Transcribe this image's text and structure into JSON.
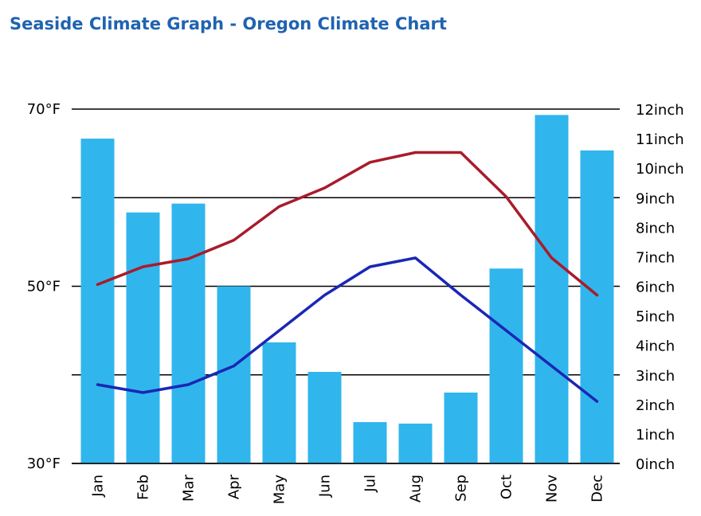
{
  "page": {
    "title": "Seaside Climate Graph - Oregon Climate Chart"
  },
  "colors": {
    "title": "#1f63b0",
    "precipitation_bar": "#30b6ec",
    "high_temp_line": "#a81c2b",
    "low_temp_line": "#1a27b5",
    "grid": "#000000"
  },
  "chart_data": {
    "type": "bar",
    "title": "Seaside Climate Graph - Oregon Climate Chart",
    "categories": [
      "Jan",
      "Feb",
      "Mar",
      "Apr",
      "May",
      "Jun",
      "Jul",
      "Aug",
      "Sep",
      "Oct",
      "Nov",
      "Dec"
    ],
    "series": [
      {
        "type": "bar",
        "axis": "right",
        "color": "#30b6ec",
        "values": [
          11.0,
          8.5,
          8.8,
          6.0,
          4.1,
          3.1,
          1.4,
          1.35,
          2.4,
          6.6,
          11.8,
          10.6
        ]
      },
      {
        "type": "line",
        "axis": "left",
        "color": "#a81c2b",
        "values": [
          50.2,
          52.2,
          53.1,
          55.2,
          59.0,
          61.1,
          64.0,
          65.1,
          65.1,
          60.1,
          53.2,
          49.0
        ]
      },
      {
        "type": "line",
        "axis": "left",
        "color": "#1a27b5",
        "values": [
          38.9,
          38.0,
          38.9,
          41.0,
          45.0,
          49.0,
          52.2,
          53.2,
          49.0,
          45.0,
          41.0,
          37.0
        ]
      }
    ],
    "y_left": {
      "range": [
        30,
        70
      ],
      "ticks": [
        30,
        50,
        70
      ],
      "tick_labels": [
        "30°F",
        "50°F",
        "70°F"
      ]
    },
    "y_right": {
      "range": [
        0,
        12
      ],
      "ticks": [
        0,
        1,
        2,
        3,
        4,
        5,
        6,
        7,
        8,
        9,
        10,
        11,
        12
      ],
      "tick_labels": [
        "0inch",
        "1inch",
        "2inch",
        "3inch",
        "4inch",
        "5inch",
        "6inch",
        "7inch",
        "8inch",
        "9inch",
        "10inch",
        "11inch",
        "12inch"
      ]
    },
    "gridlines_left": [
      30,
      40,
      50,
      60,
      70
    ],
    "grid": true,
    "legend": "none"
  }
}
